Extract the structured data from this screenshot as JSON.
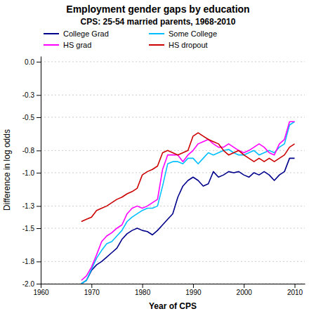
{
  "chart_data": {
    "type": "line",
    "title": "Employment gender gaps by education",
    "subtitle": "CPS: 25-54 married parents, 1968-2010",
    "xlabel": "Year of CPS",
    "ylabel": "Difference in log odds",
    "x": [
      1968,
      1969,
      1970,
      1971,
      1972,
      1973,
      1974,
      1975,
      1976,
      1977,
      1978,
      1979,
      1980,
      1981,
      1982,
      1983,
      1984,
      1985,
      1986,
      1987,
      1988,
      1989,
      1990,
      1991,
      1992,
      1993,
      1994,
      1995,
      1996,
      1997,
      1998,
      1999,
      2000,
      2001,
      2002,
      2003,
      2004,
      2005,
      2006,
      2007,
      2008,
      2009,
      2010
    ],
    "series": [
      {
        "name": "College Grad",
        "color": "#00008B",
        "values": [
          -2.0,
          -1.97,
          -1.88,
          -1.83,
          -1.8,
          -1.76,
          -1.72,
          -1.68,
          -1.6,
          -1.55,
          -1.52,
          -1.5,
          -1.52,
          -1.53,
          -1.56,
          -1.52,
          -1.47,
          -1.42,
          -1.37,
          -1.22,
          -1.12,
          -1.07,
          -1.04,
          -1.07,
          -1.12,
          -1.1,
          -0.99,
          -1.04,
          -1.02,
          -0.99,
          -1.0,
          -0.99,
          -1.02,
          -1.04,
          -1.0,
          -1.02,
          -0.99,
          -1.02,
          -1.07,
          -1.02,
          -0.99,
          -0.87,
          -0.87
        ]
      },
      {
        "name": "Some College",
        "color": "#00BFFF",
        "values": [
          -2.0,
          -1.97,
          -1.87,
          -1.77,
          -1.7,
          -1.64,
          -1.62,
          -1.57,
          -1.52,
          -1.44,
          -1.4,
          -1.37,
          -1.34,
          -1.32,
          -1.32,
          -1.3,
          -1.12,
          -0.92,
          -0.9,
          -0.9,
          -0.92,
          -0.87,
          -0.87,
          -0.92,
          -0.87,
          -0.82,
          -0.84,
          -0.82,
          -0.8,
          -0.79,
          -0.82,
          -0.84,
          -0.84,
          -0.82,
          -0.8,
          -0.84,
          -0.82,
          -0.8,
          -0.82,
          -0.77,
          -0.74,
          -0.57,
          -0.54
        ]
      },
      {
        "name": "HS grad",
        "color": "#FF00FF",
        "values": [
          -1.97,
          -1.93,
          -1.85,
          -1.74,
          -1.62,
          -1.57,
          -1.54,
          -1.5,
          -1.47,
          -1.37,
          -1.32,
          -1.3,
          -1.32,
          -1.3,
          -1.27,
          -1.24,
          -0.97,
          -0.84,
          -0.84,
          -0.84,
          -0.9,
          -0.84,
          -0.8,
          -0.74,
          -0.72,
          -0.7,
          -0.74,
          -0.77,
          -0.77,
          -0.74,
          -0.77,
          -0.8,
          -0.82,
          -0.8,
          -0.77,
          -0.74,
          -0.77,
          -0.82,
          -0.84,
          -0.74,
          -0.7,
          -0.54,
          -0.54
        ]
      },
      {
        "name": "HS dropout",
        "color": "#CC0000",
        "values": [
          -1.44,
          -1.42,
          -1.4,
          -1.34,
          -1.32,
          -1.3,
          -1.27,
          -1.24,
          -1.22,
          -1.19,
          -1.17,
          -1.14,
          -1.02,
          -0.99,
          -0.97,
          -0.94,
          -0.82,
          -0.8,
          -0.82,
          -0.84,
          -0.82,
          -0.8,
          -0.67,
          -0.64,
          -0.67,
          -0.7,
          -0.72,
          -0.74,
          -0.8,
          -0.84,
          -0.82,
          -0.8,
          -0.84,
          -0.87,
          -0.9,
          -0.87,
          -0.9,
          -0.87,
          -0.9,
          -0.87,
          -0.84,
          -0.77,
          -0.74
        ]
      }
    ],
    "xlim": [
      1960,
      2012
    ],
    "ylim": [
      -2.0,
      0.05
    ],
    "xticks": [
      1960,
      1970,
      1980,
      1990,
      2000,
      2010
    ],
    "yticks": [
      {
        "value": 0.0,
        "label": "0.0"
      },
      -0.3,
      -0.5,
      -0.8,
      {
        "value": -1.0,
        "label": "-1.0"
      },
      -1.3,
      -1.5,
      -1.8,
      {
        "value": -2.0,
        "label": "-2.0"
      }
    ],
    "grid": true,
    "legend": "upper left"
  }
}
